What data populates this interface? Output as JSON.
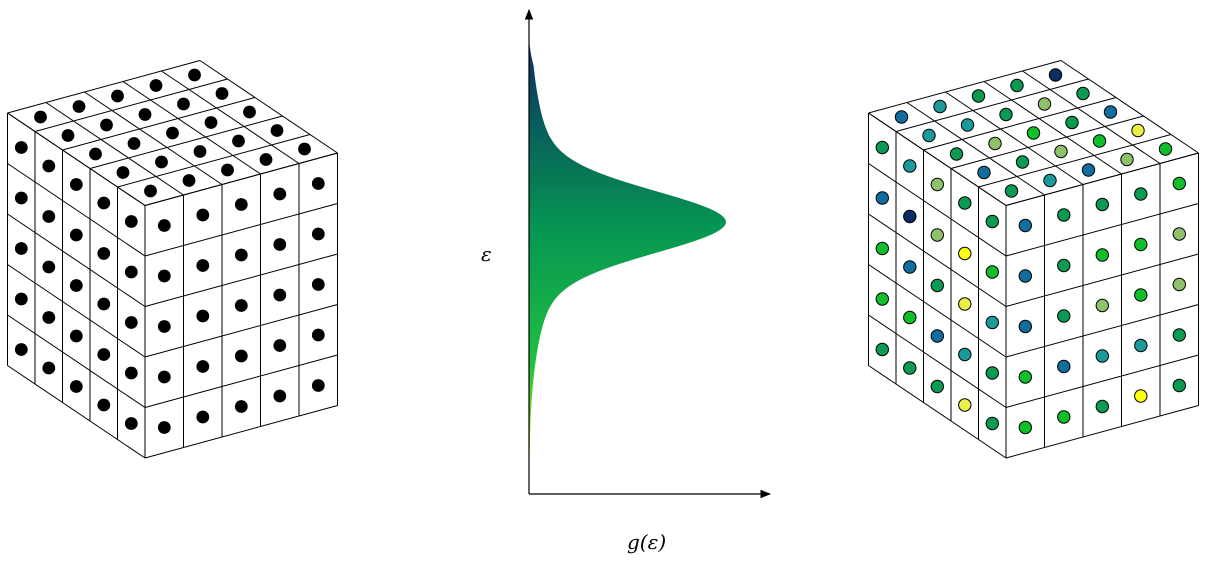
{
  "density_plot": {
    "y_axis_label": "ε",
    "x_axis_label": "g(ε)",
    "gradient_stops": [
      {
        "offset": 0.0,
        "color": "#0a2d63"
      },
      {
        "offset": 0.42,
        "color": "#069652"
      },
      {
        "offset": 0.72,
        "color": "#20c040"
      },
      {
        "offset": 1.0,
        "color": "#ffff00"
      }
    ]
  },
  "colored_lattice": {
    "palette": {
      "n": "#0a2d63",
      "b": "#106d9e",
      "t": "#1a9a9a",
      "g": "#0a9a52",
      "G": "#0fbf2a",
      "l": "#8fc06a",
      "y": "#e8f046",
      "Y": "#ffff10"
    },
    "top_face": [
      [
        "g",
        "t",
        "b",
        "l",
        "G"
      ],
      [
        "b",
        "g",
        "l",
        "G",
        "y"
      ],
      [
        "g",
        "l",
        "G",
        "g",
        "b"
      ],
      [
        "t",
        "t",
        "g",
        "l",
        "g"
      ],
      [
        "b",
        "t",
        "g",
        "g",
        "n"
      ]
    ],
    "left_face": [
      [
        "g",
        "g",
        "l",
        "t",
        "g"
      ],
      [
        "G",
        "Y",
        "l",
        "n",
        "b"
      ],
      [
        "t",
        "y",
        "g",
        "b",
        "G"
      ],
      [
        "g",
        "t",
        "b",
        "G",
        "G"
      ],
      [
        "g",
        "y",
        "g",
        "g",
        "g"
      ]
    ],
    "right_face": [
      [
        "b",
        "g",
        "g",
        "g",
        "G"
      ],
      [
        "b",
        "g",
        "G",
        "G",
        "l"
      ],
      [
        "b",
        "g",
        "l",
        "G",
        "l"
      ],
      [
        "G",
        "b",
        "t",
        "t",
        "g"
      ],
      [
        "G",
        "G",
        "g",
        "Y",
        "g"
      ]
    ]
  }
}
